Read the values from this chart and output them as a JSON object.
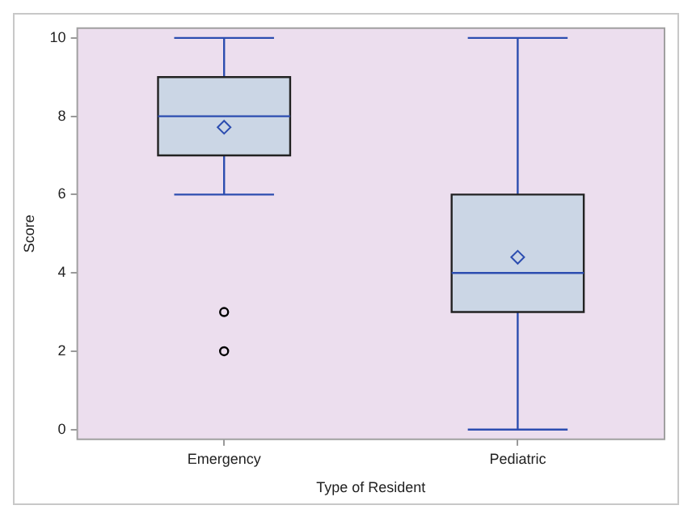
{
  "chart_data": {
    "type": "box",
    "xlabel": "Type of Resident",
    "ylabel": "Score",
    "categories": [
      "Emergency",
      "Pediatric"
    ],
    "boxes": [
      {
        "low": 6,
        "q1": 7,
        "median": 8,
        "q3": 9,
        "high": 10,
        "mean": 7.72,
        "outliers": [
          3,
          2
        ]
      },
      {
        "low": 0,
        "q1": 3,
        "median": 4,
        "q3": 6,
        "high": 10,
        "mean": 4.4
      }
    ],
    "color": "#cbd6e5",
    "ylim": [
      -0.25,
      10.25
    ],
    "yticks": [
      0,
      2,
      4,
      6,
      8,
      10
    ],
    "legend": false
  }
}
